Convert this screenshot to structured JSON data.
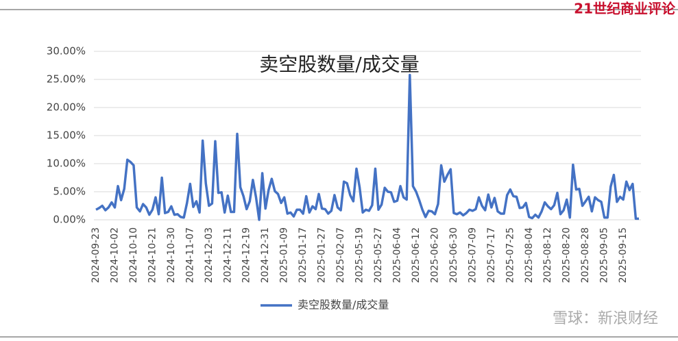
{
  "chart_data": {
    "type": "line",
    "title": "卖空股数量/成交量",
    "categories": [
      "2024-09-23",
      null,
      null,
      null,
      null,
      null,
      "2024-10-02",
      null,
      null,
      null,
      null,
      null,
      "2024-10-10",
      null,
      null,
      null,
      null,
      null,
      "2024-10-21",
      null,
      null,
      null,
      null,
      null,
      "2024-10-30",
      null,
      null,
      null,
      null,
      null,
      "2024-11-07",
      null,
      null,
      null,
      null,
      null,
      "2024-12-03",
      null,
      null,
      null,
      null,
      null,
      "2024-12-11",
      null,
      null,
      null,
      null,
      null,
      "2024-12-19",
      null,
      null,
      null,
      null,
      null,
      "2024-12-31",
      null,
      null,
      null,
      null,
      null,
      "2025-01-09",
      null,
      null,
      null,
      null,
      null,
      "2025-01-17",
      null,
      null,
      null,
      null,
      null,
      "2025-01-27",
      null,
      null,
      null,
      null,
      null,
      "2025-02-07",
      null,
      null,
      null,
      null,
      null,
      "2025-05-19",
      null,
      null,
      null,
      null,
      null,
      "2025-05-27",
      null,
      null,
      null,
      null,
      null,
      "2025-06-04",
      null,
      null,
      null,
      null,
      null,
      "2025-06-12",
      null,
      null,
      null,
      null,
      null,
      "2025-06-20",
      null,
      null,
      null,
      null,
      null,
      "2025-06-30",
      null,
      null,
      null,
      null,
      null,
      "2025-07-09",
      null,
      null,
      null,
      null,
      null,
      "2025-07-17",
      null,
      null,
      null,
      null,
      null,
      "2025-07-25",
      null,
      null,
      null,
      null,
      null,
      "2025-08-04",
      null,
      null,
      null,
      null,
      null,
      "2025-08-12",
      null,
      null,
      null,
      null,
      null,
      "2025-08-20",
      null,
      null,
      null,
      null,
      null,
      "2025-08-28",
      null,
      null,
      null,
      null,
      null,
      "2025-09-05",
      null,
      null,
      null,
      null,
      null,
      "2025-09-15",
      null,
      null,
      null,
      null,
      null
    ],
    "series": [
      {
        "name": "卖空股数量/成交量",
        "color": "#4472c4",
        "values": [
          1.8,
          2.1,
          2.5,
          1.7,
          2.2,
          3.1,
          2.2,
          6.0,
          3.5,
          5.5,
          10.7,
          10.3,
          9.7,
          2.2,
          1.5,
          2.8,
          2.2,
          0.9,
          1.8,
          4.0,
          1.0,
          7.5,
          1.2,
          1.4,
          2.4,
          0.9,
          1.0,
          0.5,
          0.4,
          3.0,
          6.4,
          2.3,
          3.3,
          1.3,
          14.1,
          6.5,
          2.5,
          2.9,
          14.0,
          4.8,
          4.9,
          1.3,
          4.3,
          1.4,
          1.4,
          15.3,
          5.8,
          4.2,
          1.9,
          3.3,
          7.1,
          4.0,
          0.0,
          8.3,
          2.0,
          5.3,
          7.3,
          5.1,
          4.6,
          3.0,
          4.0,
          1.1,
          1.3,
          0.6,
          1.8,
          1.8,
          1.1,
          4.2,
          1.3,
          2.4,
          1.9,
          4.6,
          2.0,
          1.9,
          1.1,
          1.6,
          4.4,
          2.2,
          1.7,
          6.8,
          6.5,
          4.4,
          3.3,
          9.1,
          5.8,
          1.3,
          1.8,
          1.6,
          2.6,
          9.1,
          1.8,
          2.7,
          5.7,
          5.0,
          4.9,
          3.2,
          3.4,
          6.0,
          4.0,
          3.6,
          25.8,
          6.0,
          5.0,
          3.5,
          1.8,
          0.5,
          1.6,
          1.5,
          1.0,
          2.8,
          9.7,
          6.8,
          8.0,
          9.0,
          1.2,
          1.0,
          1.3,
          0.8,
          1.2,
          1.8,
          1.6,
          1.9,
          4.0,
          2.5,
          1.7,
          4.5,
          2.2,
          3.9,
          1.5,
          1.1,
          1.1,
          4.4,
          5.4,
          4.2,
          4.1,
          2.1,
          2.2,
          3.0,
          0.5,
          0.3,
          0.9,
          0.4,
          1.5,
          3.1,
          2.4,
          1.9,
          2.6,
          4.8,
          1.0,
          1.7,
          3.6,
          0.4,
          9.8,
          5.4,
          5.5,
          2.5,
          3.3,
          4.1,
          1.5,
          4.0,
          3.5,
          3.2,
          0.4,
          0.4,
          5.9,
          8.0,
          3.2,
          4.1,
          3.6,
          6.8,
          5.3,
          6.4,
          0.2,
          0.2
        ]
      }
    ],
    "ylim": [
      0,
      30
    ],
    "yticks": [
      {
        "value": 0,
        "label": "0.00%"
      },
      {
        "value": 5,
        "label": "5.00%"
      },
      {
        "value": 10,
        "label": "10.00%"
      },
      {
        "value": 15,
        "label": "15.00%"
      },
      {
        "value": 20,
        "label": "20.00%"
      },
      {
        "value": 25,
        "label": "25.00%"
      },
      {
        "value": 30,
        "label": "30.00%"
      }
    ],
    "grid": true,
    "legend": "bottom"
  },
  "header": {
    "brand": "21世纪商业评论"
  },
  "watermark": {
    "text": "雪球：新浪财经"
  }
}
